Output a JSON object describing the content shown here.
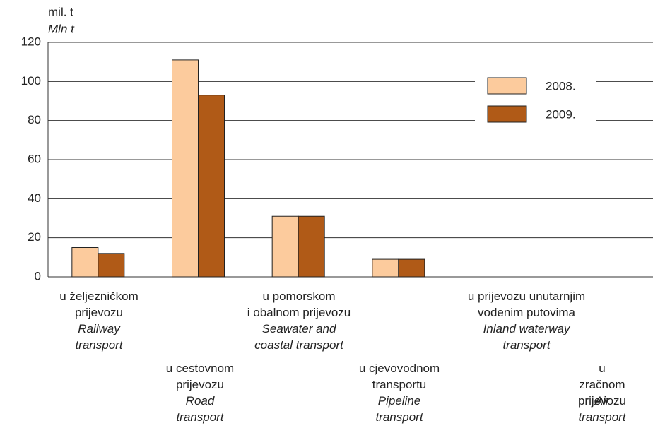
{
  "chart_data": {
    "type": "bar",
    "y_label": "mil. t",
    "y_label_en": "Mln t",
    "categories": [
      "u željezničkom\nprijevozu",
      "u cestovnom\nprijevozu",
      "u pomorskom\ni obalnom prijevozu",
      "u cjevovodnom\ntransportu",
      "u prijevozu unutarnjim\nvodenim putovima",
      "u zračnom\nprijevozu"
    ],
    "category_translations": [
      "Railway\ntransport",
      "Road\ntransport",
      "Seawater and\ncoastal transport",
      "Pipeline\ntransport",
      "Inland waterway\ntransport",
      "Air transport"
    ],
    "series": [
      {
        "name": "2008.",
        "color": "#fccb9d",
        "values": [
          15,
          111,
          31,
          9,
          0,
          0
        ]
      },
      {
        "name": "2009.",
        "color": "#b05a17",
        "values": [
          12,
          93,
          31,
          9,
          0,
          0
        ]
      }
    ],
    "ylim": [
      0,
      120
    ],
    "yticks": [
      0,
      20,
      40,
      60,
      80,
      100,
      120
    ],
    "grid": true
  }
}
